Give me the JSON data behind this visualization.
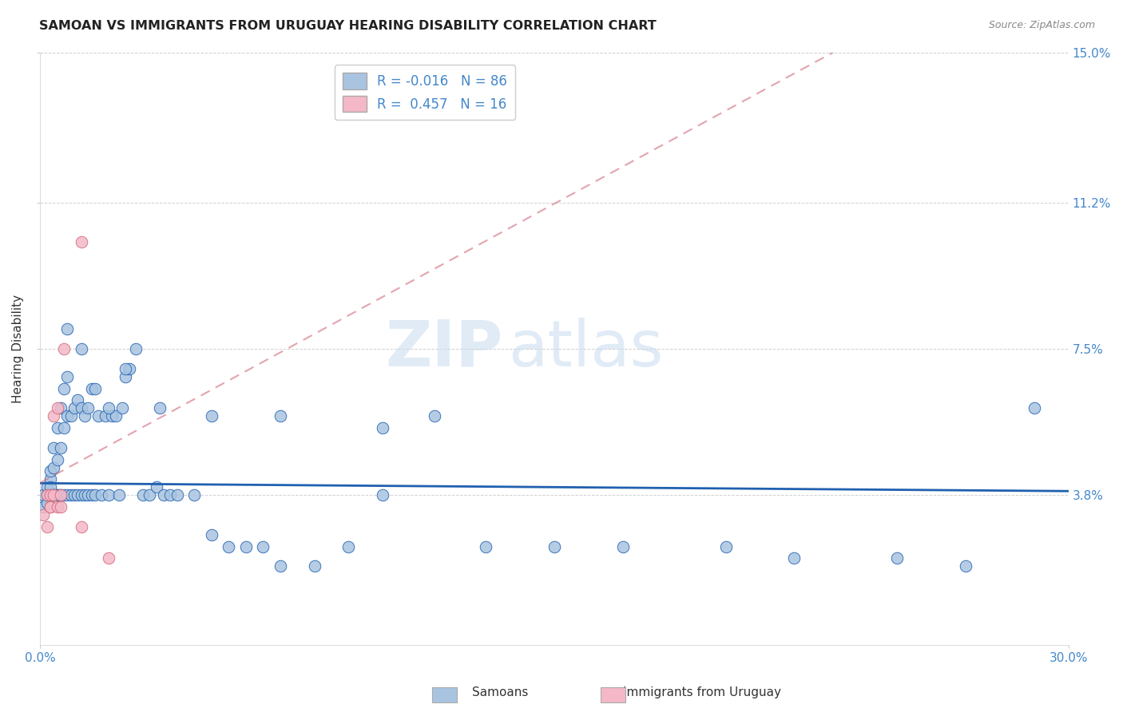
{
  "title": "SAMOAN VS IMMIGRANTS FROM URUGUAY HEARING DISABILITY CORRELATION CHART",
  "source": "Source: ZipAtlas.com",
  "ylabel": "Hearing Disability",
  "xlim": [
    0.0,
    0.3
  ],
  "ylim": [
    0.0,
    0.15
  ],
  "yticks": [
    0.038,
    0.075,
    0.112,
    0.15
  ],
  "ytick_labels": [
    "3.8%",
    "7.5%",
    "11.2%",
    "15.0%"
  ],
  "legend_1_r": "-0.016",
  "legend_1_n": "86",
  "legend_2_r": "0.457",
  "legend_2_n": "16",
  "color_samoan": "#a8c4e0",
  "color_uruguay": "#f4b8c8",
  "color_samoan_line": "#2060b0",
  "color_uruguay_line": "#d06878",
  "watermark_zip": "ZIP",
  "watermark_atlas": "atlas",
  "blue_scatter_x": [
    0.001,
    0.001,
    0.002,
    0.002,
    0.002,
    0.003,
    0.003,
    0.003,
    0.003,
    0.004,
    0.004,
    0.004,
    0.004,
    0.005,
    0.005,
    0.005,
    0.005,
    0.006,
    0.006,
    0.006,
    0.006,
    0.007,
    0.007,
    0.007,
    0.008,
    0.008,
    0.008,
    0.009,
    0.009,
    0.01,
    0.01,
    0.011,
    0.011,
    0.012,
    0.012,
    0.013,
    0.013,
    0.014,
    0.014,
    0.015,
    0.015,
    0.016,
    0.017,
    0.018,
    0.019,
    0.02,
    0.021,
    0.022,
    0.023,
    0.024,
    0.025,
    0.026,
    0.028,
    0.03,
    0.032,
    0.034,
    0.036,
    0.038,
    0.04,
    0.045,
    0.05,
    0.055,
    0.06,
    0.065,
    0.07,
    0.08,
    0.09,
    0.1,
    0.115,
    0.13,
    0.15,
    0.17,
    0.2,
    0.22,
    0.25,
    0.27,
    0.29,
    0.008,
    0.012,
    0.016,
    0.02,
    0.025,
    0.035,
    0.05,
    0.07,
    0.1
  ],
  "blue_scatter_y": [
    0.038,
    0.035,
    0.04,
    0.036,
    0.038,
    0.042,
    0.038,
    0.04,
    0.044,
    0.038,
    0.045,
    0.05,
    0.038,
    0.038,
    0.047,
    0.055,
    0.038,
    0.038,
    0.05,
    0.06,
    0.038,
    0.038,
    0.055,
    0.065,
    0.038,
    0.058,
    0.068,
    0.038,
    0.058,
    0.038,
    0.06,
    0.038,
    0.062,
    0.038,
    0.06,
    0.038,
    0.058,
    0.038,
    0.06,
    0.038,
    0.065,
    0.038,
    0.058,
    0.038,
    0.058,
    0.038,
    0.058,
    0.058,
    0.038,
    0.06,
    0.068,
    0.07,
    0.075,
    0.038,
    0.038,
    0.04,
    0.038,
    0.038,
    0.038,
    0.038,
    0.028,
    0.025,
    0.025,
    0.025,
    0.02,
    0.02,
    0.025,
    0.038,
    0.058,
    0.025,
    0.025,
    0.025,
    0.025,
    0.022,
    0.022,
    0.02,
    0.06,
    0.08,
    0.075,
    0.065,
    0.06,
    0.07,
    0.06,
    0.058,
    0.058,
    0.055
  ],
  "pink_scatter_x": [
    0.001,
    0.002,
    0.002,
    0.003,
    0.003,
    0.003,
    0.004,
    0.004,
    0.005,
    0.005,
    0.006,
    0.006,
    0.007,
    0.012,
    0.012,
    0.02
  ],
  "pink_scatter_y": [
    0.033,
    0.03,
    0.038,
    0.035,
    0.038,
    0.035,
    0.038,
    0.058,
    0.035,
    0.06,
    0.038,
    0.035,
    0.075,
    0.102,
    0.03,
    0.022
  ]
}
